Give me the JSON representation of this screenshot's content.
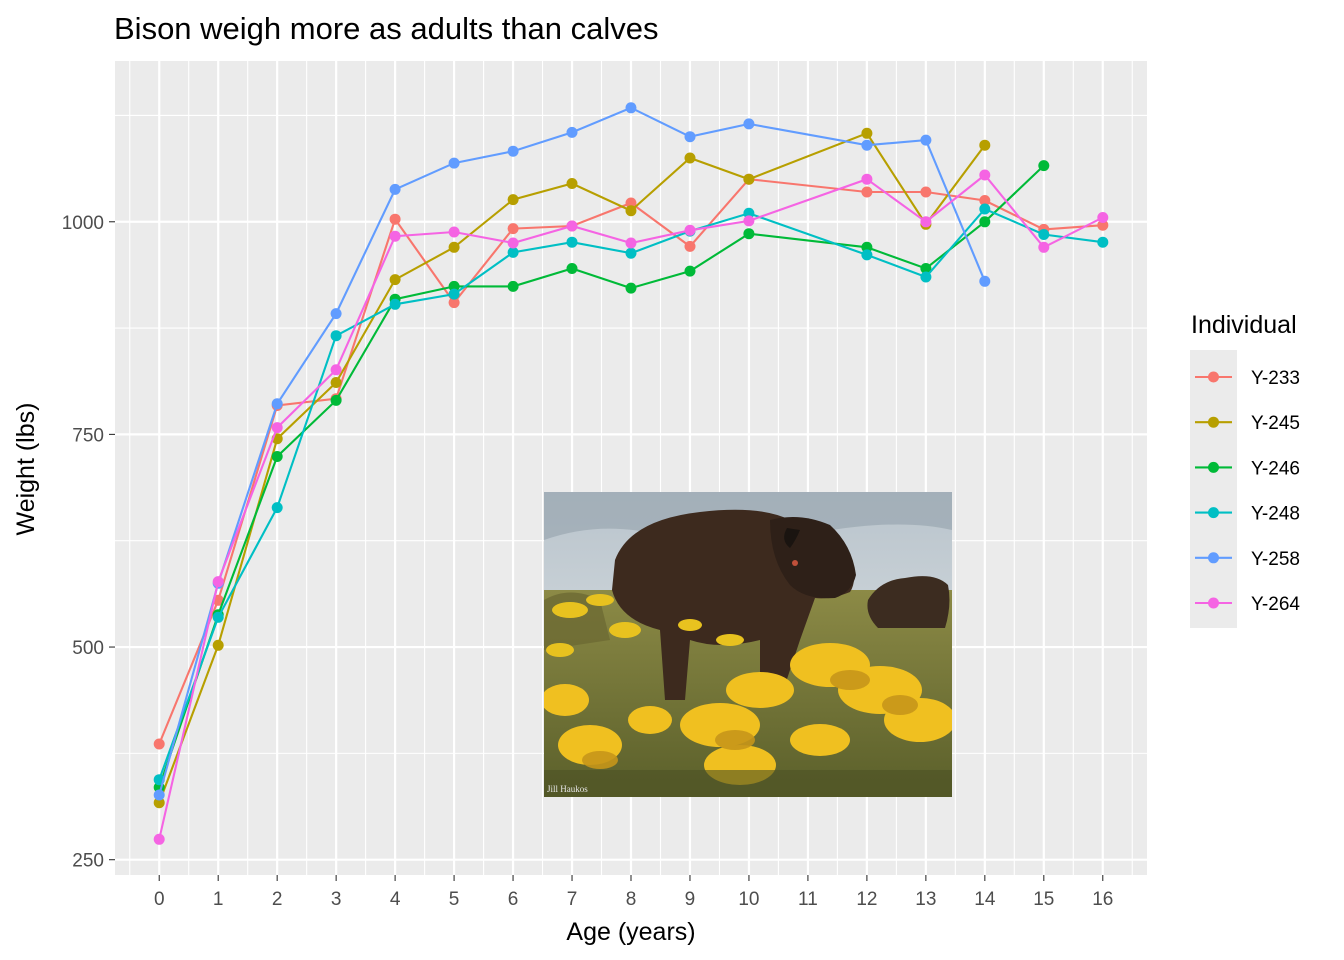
{
  "chart_data": {
    "type": "line",
    "title": "Bison weigh more as adults than calves",
    "xlabel": "Age (years)",
    "ylabel": "Weight (lbs)",
    "xlim": [
      -0.75,
      16.75
    ],
    "ylim": [
      232,
      1189
    ],
    "x_ticks": [
      0,
      1,
      2,
      3,
      4,
      5,
      6,
      7,
      8,
      9,
      10,
      11,
      12,
      13,
      14,
      15,
      16
    ],
    "y_ticks": [
      250,
      500,
      750,
      1000
    ],
    "grid": true,
    "markers": true,
    "legend": {
      "title": "Individual",
      "position": "right"
    },
    "image_caption": "Jill Haukos",
    "series": [
      {
        "name": "Y-233",
        "color": "#F8766D",
        "x": [
          0,
          1,
          2,
          3,
          4,
          5,
          6,
          7,
          8,
          9,
          10,
          12,
          13,
          14,
          15,
          16
        ],
        "y": [
          386,
          555,
          784,
          792,
          1003,
          905,
          992,
          995,
          1022,
          971,
          1050,
          1035,
          1035,
          1025,
          991,
          996
        ]
      },
      {
        "name": "Y-245",
        "color": "#B79F00",
        "x": [
          0,
          1,
          2,
          3,
          4,
          5,
          6,
          7,
          8,
          9,
          10,
          12,
          13,
          14
        ],
        "y": [
          317,
          502,
          745,
          811,
          932,
          970,
          1026,
          1045,
          1013,
          1075,
          1050,
          1104,
          997,
          1090
        ]
      },
      {
        "name": "Y-246",
        "color": "#00BA38",
        "x": [
          0,
          1,
          2,
          3,
          4,
          5,
          6,
          7,
          8,
          9,
          10,
          12,
          13,
          14,
          15
        ],
        "y": [
          335,
          538,
          724,
          790,
          909,
          924,
          924,
          945,
          922,
          942,
          986,
          970,
          945,
          1000,
          1066
        ]
      },
      {
        "name": "Y-248",
        "color": "#00BFC4",
        "x": [
          0,
          1,
          2,
          3,
          4,
          5,
          8,
          6,
          7,
          9,
          10,
          12,
          13,
          14,
          15,
          16
        ],
        "y": [
          344,
          535,
          664,
          866,
          903,
          915,
          963,
          964,
          976,
          989,
          1010,
          961,
          935,
          1015,
          985,
          976
        ]
      },
      {
        "name": "Y-258",
        "color": "#619CFF",
        "x": [
          0,
          1,
          2,
          3,
          4,
          5,
          6,
          7,
          8,
          9,
          10,
          12,
          13,
          14
        ],
        "y": [
          326,
          575,
          786,
          892,
          1038,
          1069,
          1083,
          1105,
          1134,
          1100,
          1115,
          1090,
          1096,
          930
        ]
      },
      {
        "name": "Y-264",
        "color": "#F564E3",
        "x": [
          0,
          1,
          2,
          3,
          4,
          5,
          6,
          7,
          8,
          9,
          10,
          12,
          13,
          14,
          15,
          16
        ],
        "y": [
          274,
          577,
          758,
          826,
          983,
          988,
          975,
          995,
          975,
          990,
          1001,
          1050,
          1000,
          1055,
          970,
          1005
        ]
      }
    ]
  }
}
